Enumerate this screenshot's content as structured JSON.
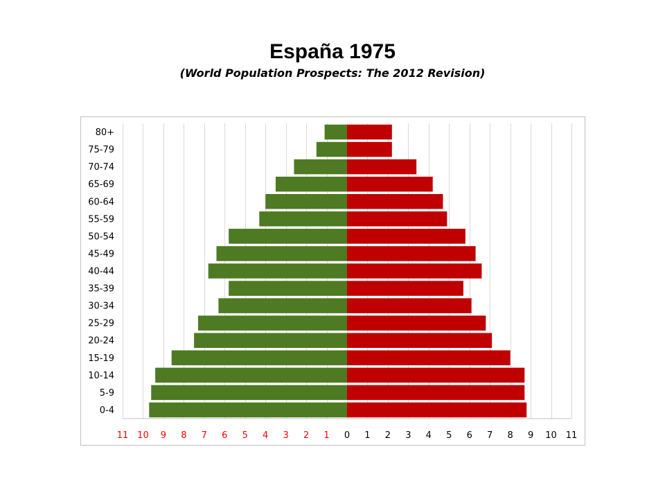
{
  "title": "España 1975",
  "subtitle": "(World Population Prospects: The 2012 Revision)",
  "chart_data": {
    "type": "bar",
    "orientation": "horizontal",
    "categories": [
      "80+",
      "75-79",
      "70-74",
      "65-69",
      "60-64",
      "55-59",
      "50-54",
      "45-49",
      "40-44",
      "35-39",
      "30-34",
      "25-29",
      "20-24",
      "15-19",
      "10-14",
      "5-9",
      "0-4"
    ],
    "series": [
      {
        "side": "left",
        "color": "#4e7a23",
        "values": [
          1.1,
          1.5,
          2.6,
          3.5,
          4.0,
          4.3,
          5.8,
          6.4,
          6.8,
          5.8,
          6.3,
          7.3,
          7.5,
          8.6,
          9.4,
          9.6,
          9.7
        ]
      },
      {
        "side": "right",
        "color": "#c00000",
        "values": [
          2.2,
          2.2,
          3.4,
          4.2,
          4.7,
          4.9,
          5.8,
          6.3,
          6.6,
          5.7,
          6.1,
          6.8,
          7.1,
          8.0,
          8.7,
          8.7,
          8.8
        ]
      }
    ],
    "xlim": [
      -11,
      11
    ],
    "xticks_left": [
      "11",
      "10",
      "9",
      "8",
      "7",
      "6",
      "5",
      "4",
      "3",
      "2",
      "1"
    ],
    "xticks_right": [
      "0",
      "1",
      "2",
      "3",
      "4",
      "5",
      "6",
      "7",
      "8",
      "9",
      "10",
      "11"
    ],
    "left_tick_color": "#ff0000",
    "right_tick_color": "#000000",
    "grid": true,
    "legend": "none"
  }
}
